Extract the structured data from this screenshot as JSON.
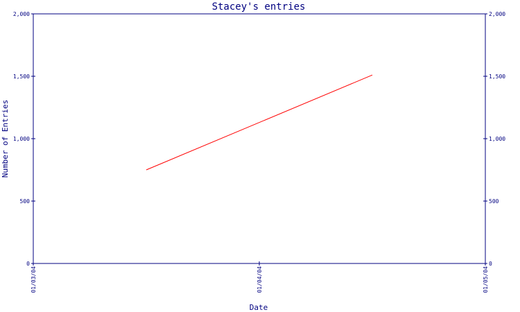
{
  "chart_data": {
    "type": "line",
    "title": "Stacey's entries",
    "xlabel": "Date",
    "ylabel": "Number of Entries",
    "x_ticks": [
      "01/03/04",
      "01/04/04",
      "01/05/04"
    ],
    "y_ticks": [
      "0",
      "500",
      "1,000",
      "1,500",
      "2,000"
    ],
    "y_right_ticks": [
      "0",
      "500",
      "1,000",
      "1,500",
      "2,000"
    ],
    "ylim": [
      0,
      2000
    ],
    "xlim": [
      "01/03/04",
      "01/05/04"
    ],
    "series": [
      {
        "color": "#ff0000",
        "points": [
          {
            "x": "01/03/04 12:00",
            "y": 750
          },
          {
            "x": "01/04/04 12:00",
            "y": 1510
          }
        ]
      }
    ],
    "grid": false,
    "axis_color": "#000080"
  }
}
